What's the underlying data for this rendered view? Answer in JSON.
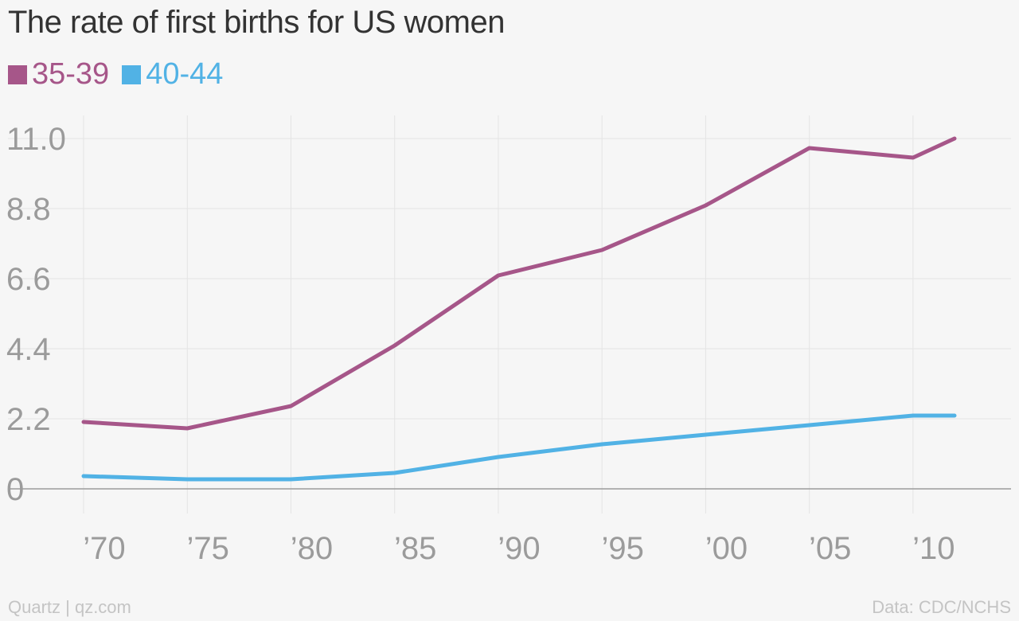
{
  "chart_data": {
    "type": "line",
    "title": "The rate of first births for US women",
    "x": [
      1970,
      1975,
      1980,
      1985,
      1990,
      1995,
      2000,
      2005,
      2010,
      2012
    ],
    "x_tick_values": [
      1970,
      1975,
      1980,
      1985,
      1990,
      1995,
      2000,
      2005,
      2010
    ],
    "x_tick_labels": [
      "’70",
      "’75",
      "’80",
      "’85",
      "’90",
      "’95",
      "’00",
      "’05",
      "’10"
    ],
    "y_tick_values": [
      0,
      2.2,
      4.4,
      6.6,
      8.8,
      11.0
    ],
    "y_tick_labels": [
      "0",
      "2.2",
      "4.4",
      "6.6",
      "8.8",
      "11.0"
    ],
    "ylim": [
      0,
      11.0
    ],
    "xlabel": "",
    "ylabel": "",
    "grid": true,
    "legend_position": "top-left",
    "series": [
      {
        "name": "35-39",
        "color": "#a65689",
        "values": [
          2.1,
          1.9,
          2.6,
          4.5,
          6.7,
          7.5,
          8.9,
          10.7,
          10.4,
          11.0
        ]
      },
      {
        "name": "40-44",
        "color": "#51b2e5",
        "values": [
          0.4,
          0.3,
          0.3,
          0.5,
          1.0,
          1.4,
          1.7,
          2.0,
          2.3,
          2.3
        ]
      }
    ]
  },
  "footer": {
    "source_left": "Quartz | qz.com",
    "source_right": "Data: CDC/NCHS"
  },
  "colors": {
    "background": "#f6f6f6",
    "grid": "#e4e4e4",
    "axis_text": "#9b9b9b",
    "baseline": "#9b9b9b"
  }
}
